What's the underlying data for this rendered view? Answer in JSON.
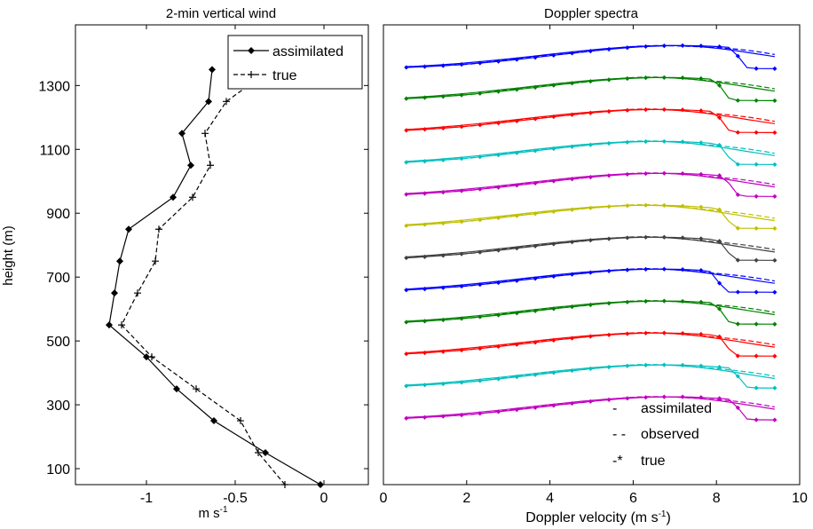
{
  "chart_data": [
    {
      "type": "line",
      "title": "2-min vertical wind",
      "xlabel": "m s",
      "xlabel_sup": "-1",
      "ylabel": "height (m)",
      "xlim": [
        -1.4,
        0.25
      ],
      "ylim": [
        50,
        1490
      ],
      "x_ticks": [
        -1,
        -0.5,
        0
      ],
      "x_tick_labels": [
        "-1",
        "-0.5",
        "0"
      ],
      "y_ticks": [
        100,
        300,
        500,
        700,
        900,
        1100,
        1300
      ],
      "y_tick_labels": [
        "100",
        "300",
        "500",
        "700",
        "900",
        "1100",
        "1300"
      ],
      "legend": {
        "position": "top-right",
        "entries": [
          "assimilated",
          "true"
        ]
      },
      "series": [
        {
          "name": "assimilated",
          "style": "solid",
          "marker": "diamond",
          "color": "#000000",
          "heights": [
            50,
            150,
            250,
            350,
            450,
            550,
            650,
            750,
            850,
            950,
            1050,
            1150,
            1250,
            1350
          ],
          "x": [
            -0.02,
            -0.33,
            -0.62,
            -0.83,
            -1.0,
            -1.21,
            -1.18,
            -1.15,
            -1.1,
            -0.85,
            -0.75,
            -0.8,
            -0.65,
            -0.63
          ]
        },
        {
          "name": "true",
          "style": "dashed",
          "marker": "plus",
          "color": "#000000",
          "heights": [
            50,
            150,
            250,
            350,
            450,
            550,
            650,
            750,
            850,
            950,
            1050,
            1150,
            1250,
            1350
          ],
          "x": [
            -0.22,
            -0.37,
            -0.47,
            -0.72,
            -0.97,
            -1.14,
            -1.05,
            -0.95,
            -0.93,
            -0.74,
            -0.64,
            -0.67,
            -0.55,
            -0.3
          ]
        }
      ]
    },
    {
      "type": "line",
      "title": "Doppler spectra",
      "xlabel": "Doppler velocity (m s",
      "xlabel_sup": "-1",
      "xlabel_tail": ")",
      "xlim": [
        0,
        10
      ],
      "ylim": [
        50,
        1490
      ],
      "x_ticks": [
        0,
        2,
        4,
        6,
        8,
        10
      ],
      "x_tick_labels": [
        "0",
        "2",
        "4",
        "6",
        "8",
        "10"
      ],
      "legend": {
        "position": "bottom-right",
        "entries": [
          {
            "symbol": "-",
            "text": "assimilated"
          },
          {
            "symbol": "- -",
            "text": "observed"
          },
          {
            "symbol": "-*",
            "text": "true"
          }
        ]
      },
      "velocity_range": [
        0.55,
        9.4
      ],
      "spectrum_amplitude_m": 75,
      "spectra": [
        {
          "height": 250,
          "color": "#c000c0",
          "peak_velocity": 6.8,
          "drop_velocity": 8.9
        },
        {
          "height": 350,
          "color": "#00bfbf",
          "peak_velocity": 6.6,
          "drop_velocity": 8.9
        },
        {
          "height": 450,
          "color": "#ff0000",
          "peak_velocity": 6.5,
          "drop_velocity": 8.6
        },
        {
          "height": 550,
          "color": "#008000",
          "peak_velocity": 6.6,
          "drop_velocity": 8.5
        },
        {
          "height": 650,
          "color": "#0000ff",
          "peak_velocity": 6.5,
          "drop_velocity": 8.4
        },
        {
          "height": 750,
          "color": "#404040",
          "peak_velocity": 6.4,
          "drop_velocity": 8.6
        },
        {
          "height": 850,
          "color": "#bfbf00",
          "peak_velocity": 6.3,
          "drop_velocity": 8.6
        },
        {
          "height": 950,
          "color": "#c000c0",
          "peak_velocity": 6.6,
          "drop_velocity": 8.7
        },
        {
          "height": 1050,
          "color": "#00bfbf",
          "peak_velocity": 6.5,
          "drop_velocity": 8.6
        },
        {
          "height": 1150,
          "color": "#ff0000",
          "peak_velocity": 6.5,
          "drop_velocity": 8.5
        },
        {
          "height": 1250,
          "color": "#008000",
          "peak_velocity": 6.6,
          "drop_velocity": 8.5
        },
        {
          "height": 1350,
          "color": "#0000ff",
          "peak_velocity": 7.0,
          "drop_velocity": 8.9
        }
      ]
    }
  ]
}
